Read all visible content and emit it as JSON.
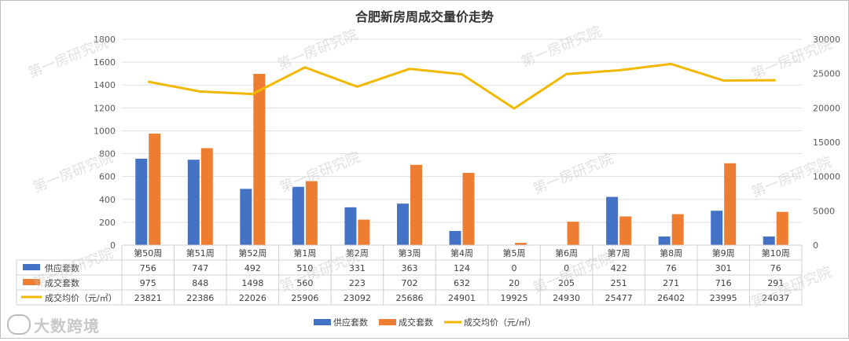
{
  "chart_data": {
    "type": "bar",
    "title": "合肥新房周成交量价走势",
    "categories": [
      "第50周",
      "第51周",
      "第52周",
      "第1周",
      "第2周",
      "第3周",
      "第4周",
      "第5周",
      "第6周",
      "第7周",
      "第8周",
      "第9周",
      "第10周"
    ],
    "series": [
      {
        "name": "供应套数",
        "type": "bar",
        "axis": "left",
        "color": "#4472C4",
        "values": [
          756,
          747,
          492,
          510,
          331,
          363,
          124,
          0,
          0,
          422,
          76,
          301,
          76
        ]
      },
      {
        "name": "成交套数",
        "type": "bar",
        "axis": "left",
        "color": "#ED7D31",
        "values": [
          975,
          848,
          1498,
          560,
          223,
          702,
          632,
          20,
          205,
          251,
          271,
          716,
          291
        ]
      },
      {
        "name": "成交均价（元/㎡）",
        "type": "line",
        "axis": "right",
        "color": "#F2B800",
        "values": [
          23821,
          22386,
          22026,
          25906,
          23092,
          25686,
          24901,
          19925,
          24930,
          25477,
          26402,
          23995,
          24037
        ]
      }
    ],
    "yleft": {
      "min": 0,
      "max": 1800,
      "ticks": [
        "0",
        "200",
        "400",
        "600",
        "800",
        "1000",
        "1200",
        "1400",
        "1600",
        "1800"
      ]
    },
    "yright": {
      "min": 0,
      "max": 30000,
      "ticks": [
        "0",
        "5000",
        "10000",
        "15000",
        "20000",
        "25000",
        "30000"
      ]
    },
    "grid": true,
    "legend": "bottom",
    "data_table": true
  },
  "watermark": {
    "text": "第一房研究院",
    "logo_text": "大数跨境"
  }
}
